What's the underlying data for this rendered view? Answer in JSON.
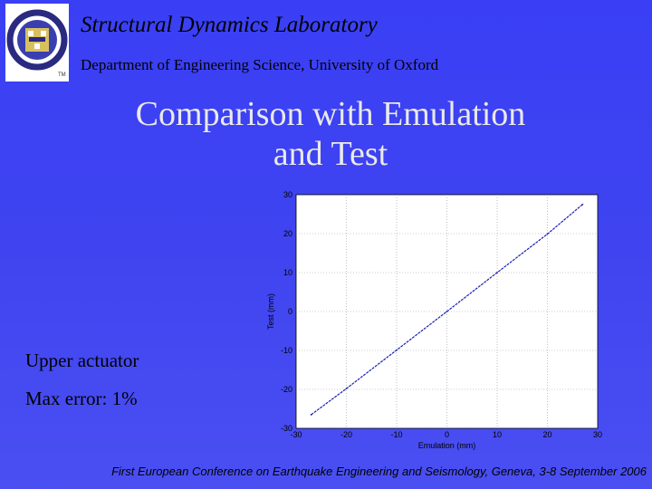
{
  "header": {
    "lab_title": "Structural Dynamics Laboratory",
    "department": "Department of Engineering Science, University of Oxford",
    "logo_icon": "oxford-crest-icon",
    "logo_mark": "TM"
  },
  "slide": {
    "title_line1": "Comparison with Emulation",
    "title_line2": "and Test",
    "notes": [
      "Upper actuator",
      "Max error: 1%"
    ]
  },
  "footer": {
    "text": "First European Conference on Earthquake Engineering and Seismology, Geneva, 3-8 September 2006"
  },
  "colors": {
    "background": "#3f44f0",
    "plot_area": "#ffffff",
    "series": "#1a22b0",
    "logo_ring": "#2a2a80"
  },
  "chart_data": {
    "type": "line",
    "xlabel": "Emulation (mm)",
    "ylabel": "Test (mm)",
    "xlim": [
      -30,
      30
    ],
    "ylim": [
      -30,
      30
    ],
    "xticks": [
      -30,
      -20,
      -10,
      0,
      10,
      20,
      30
    ],
    "yticks": [
      -30,
      -20,
      -10,
      0,
      10,
      20,
      30
    ],
    "grid": true,
    "series": [
      {
        "x": [
          -27,
          -20,
          -10,
          0,
          10,
          20,
          27
        ],
        "y": [
          -26.5,
          -19.8,
          -9.9,
          0,
          10,
          19.9,
          27.5
        ]
      }
    ]
  }
}
